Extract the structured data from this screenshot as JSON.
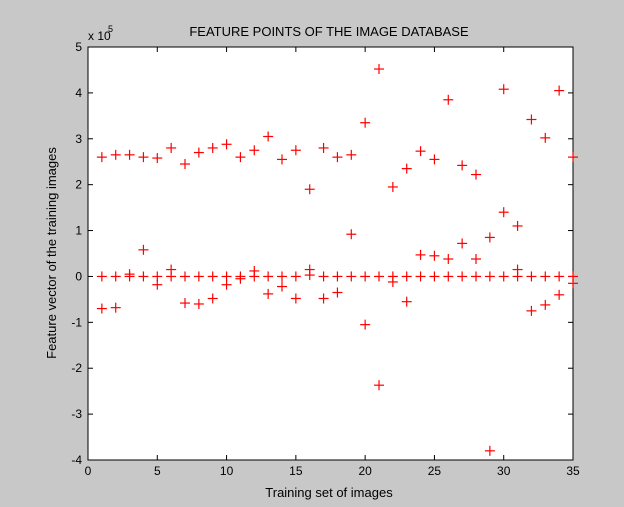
{
  "chart_data": {
    "type": "scatter",
    "title": "FEATURE POINTS OF THE IMAGE DATABASE",
    "xlabel": "Training set of images",
    "ylabel": "Feature vector of the training images",
    "y_exponent_label": "x 10",
    "y_exponent_power": "5",
    "xlim": [
      0,
      35
    ],
    "ylim": [
      -4,
      5
    ],
    "x_ticks": [
      0,
      5,
      10,
      15,
      20,
      25,
      30,
      35
    ],
    "y_ticks": [
      -4,
      -3,
      -2,
      -1,
      0,
      1,
      2,
      3,
      4,
      5
    ],
    "grid": false,
    "marker": "+",
    "marker_color": "#ff0000",
    "background_color": "#c8c8c8",
    "axes_color": "#ffffff",
    "points": [
      [
        1,
        2.6
      ],
      [
        1,
        0.0
      ],
      [
        1,
        -0.7
      ],
      [
        2,
        2.65
      ],
      [
        2,
        0.0
      ],
      [
        2,
        -0.68
      ],
      [
        3,
        2.65
      ],
      [
        3,
        0.05
      ],
      [
        3,
        0.0
      ],
      [
        4,
        2.6
      ],
      [
        4,
        0.58
      ],
      [
        4,
        0.0
      ],
      [
        5,
        2.58
      ],
      [
        5,
        0.0
      ],
      [
        5,
        -0.18
      ],
      [
        6,
        2.8
      ],
      [
        6,
        0.15
      ],
      [
        6,
        0.0
      ],
      [
        7,
        2.45
      ],
      [
        7,
        0.0
      ],
      [
        7,
        -0.58
      ],
      [
        8,
        2.7
      ],
      [
        8,
        0.0
      ],
      [
        8,
        -0.6
      ],
      [
        9,
        2.8
      ],
      [
        9,
        0.0
      ],
      [
        9,
        -0.48
      ],
      [
        10,
        2.88
      ],
      [
        10,
        0.0
      ],
      [
        10,
        -0.18
      ],
      [
        11,
        2.6
      ],
      [
        11,
        0.0
      ],
      [
        11,
        -0.05
      ],
      [
        12,
        2.75
      ],
      [
        12,
        0.12
      ],
      [
        12,
        0.0
      ],
      [
        13,
        3.05
      ],
      [
        13,
        0.0
      ],
      [
        13,
        -0.38
      ],
      [
        14,
        2.55
      ],
      [
        14,
        0.0
      ],
      [
        14,
        -0.22
      ],
      [
        15,
        2.75
      ],
      [
        15,
        0.0
      ],
      [
        15,
        -0.48
      ],
      [
        16,
        1.9
      ],
      [
        16,
        0.15
      ],
      [
        16,
        0.03
      ],
      [
        17,
        2.8
      ],
      [
        17,
        0.0
      ],
      [
        17,
        -0.48
      ],
      [
        18,
        2.6
      ],
      [
        18,
        0.0
      ],
      [
        18,
        -0.35
      ],
      [
        19,
        2.65
      ],
      [
        19,
        0.92
      ],
      [
        19,
        0.0
      ],
      [
        20,
        3.35
      ],
      [
        20,
        0.0
      ],
      [
        20,
        -1.05
      ],
      [
        21,
        4.52
      ],
      [
        21,
        0.0
      ],
      [
        21,
        -2.37
      ],
      [
        22,
        1.95
      ],
      [
        22,
        0.0
      ],
      [
        22,
        -0.12
      ],
      [
        23,
        2.35
      ],
      [
        23,
        0.0
      ],
      [
        23,
        -0.55
      ],
      [
        24,
        2.73
      ],
      [
        24,
        0.47
      ],
      [
        24,
        0.0
      ],
      [
        25,
        2.55
      ],
      [
        25,
        0.45
      ],
      [
        25,
        0.0
      ],
      [
        26,
        3.85
      ],
      [
        26,
        0.38
      ],
      [
        26,
        0.0
      ],
      [
        27,
        2.42
      ],
      [
        27,
        0.72
      ],
      [
        27,
        0.0
      ],
      [
        28,
        2.22
      ],
      [
        28,
        0.38
      ],
      [
        28,
        0.0
      ],
      [
        29,
        0.85
      ],
      [
        29,
        0.0
      ],
      [
        29,
        -3.8
      ],
      [
        30,
        4.08
      ],
      [
        30,
        1.4
      ],
      [
        30,
        0.0
      ],
      [
        31,
        1.1
      ],
      [
        31,
        0.15
      ],
      [
        31,
        0.0
      ],
      [
        32,
        3.42
      ],
      [
        32,
        0.0
      ],
      [
        32,
        -0.75
      ],
      [
        33,
        3.02
      ],
      [
        33,
        0.0
      ],
      [
        33,
        -0.62
      ],
      [
        34,
        4.05
      ],
      [
        34,
        0.0
      ],
      [
        34,
        -0.4
      ],
      [
        35,
        2.6
      ],
      [
        35,
        0.0
      ],
      [
        35,
        -0.15
      ]
    ]
  }
}
